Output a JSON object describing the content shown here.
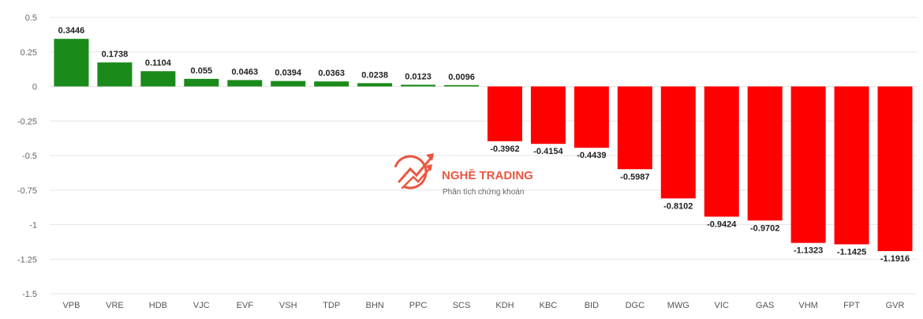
{
  "watermark": {
    "title": "NGHỀ TRADING",
    "subtitle": "Phân tích chứng khoán",
    "color": "#e8452c"
  },
  "colors": {
    "positive": "#1a8a1a",
    "negative": "#ff0000",
    "grid": "#e6e6e6"
  },
  "chart_data": {
    "type": "bar",
    "categories": [
      "VPB",
      "VRE",
      "HDB",
      "VJC",
      "EVF",
      "VSH",
      "TDP",
      "BHN",
      "PPC",
      "SCS",
      "KDH",
      "KBC",
      "BID",
      "DGC",
      "MWG",
      "VIC",
      "GAS",
      "VHM",
      "FPT",
      "GVR"
    ],
    "values": [
      0.3446,
      0.1738,
      0.1104,
      0.055,
      0.0463,
      0.0394,
      0.0363,
      0.0238,
      0.0123,
      0.0096,
      -0.3962,
      -0.4154,
      -0.4439,
      -0.5987,
      -0.8102,
      -0.9424,
      -0.9702,
      -1.1323,
      -1.1425,
      -1.1916
    ],
    "value_labels": [
      "0.3446",
      "0.1738",
      "0.1104",
      "0.055",
      "0.0463",
      "0.0394",
      "0.0363",
      "0.0238",
      "0.0123",
      "0.0096",
      "-0.3962",
      "-0.4154",
      "-0.4439",
      "-0.5987",
      "-0.8102",
      "-0.9424",
      "-0.9702",
      "-1.1323",
      "-1.1425",
      "-1.1916"
    ],
    "yticks": [
      0.5,
      0.25,
      0,
      -0.25,
      -0.5,
      -0.75,
      -1,
      -1.25,
      -1.5
    ],
    "ytick_labels": [
      "0.5",
      "0.25",
      "0",
      "-0.25",
      "-0.5",
      "-0.75",
      "-1",
      "-1.25",
      "-1.5"
    ],
    "ylim": [
      -1.5,
      0.5
    ],
    "grid": true,
    "legend": "none"
  }
}
